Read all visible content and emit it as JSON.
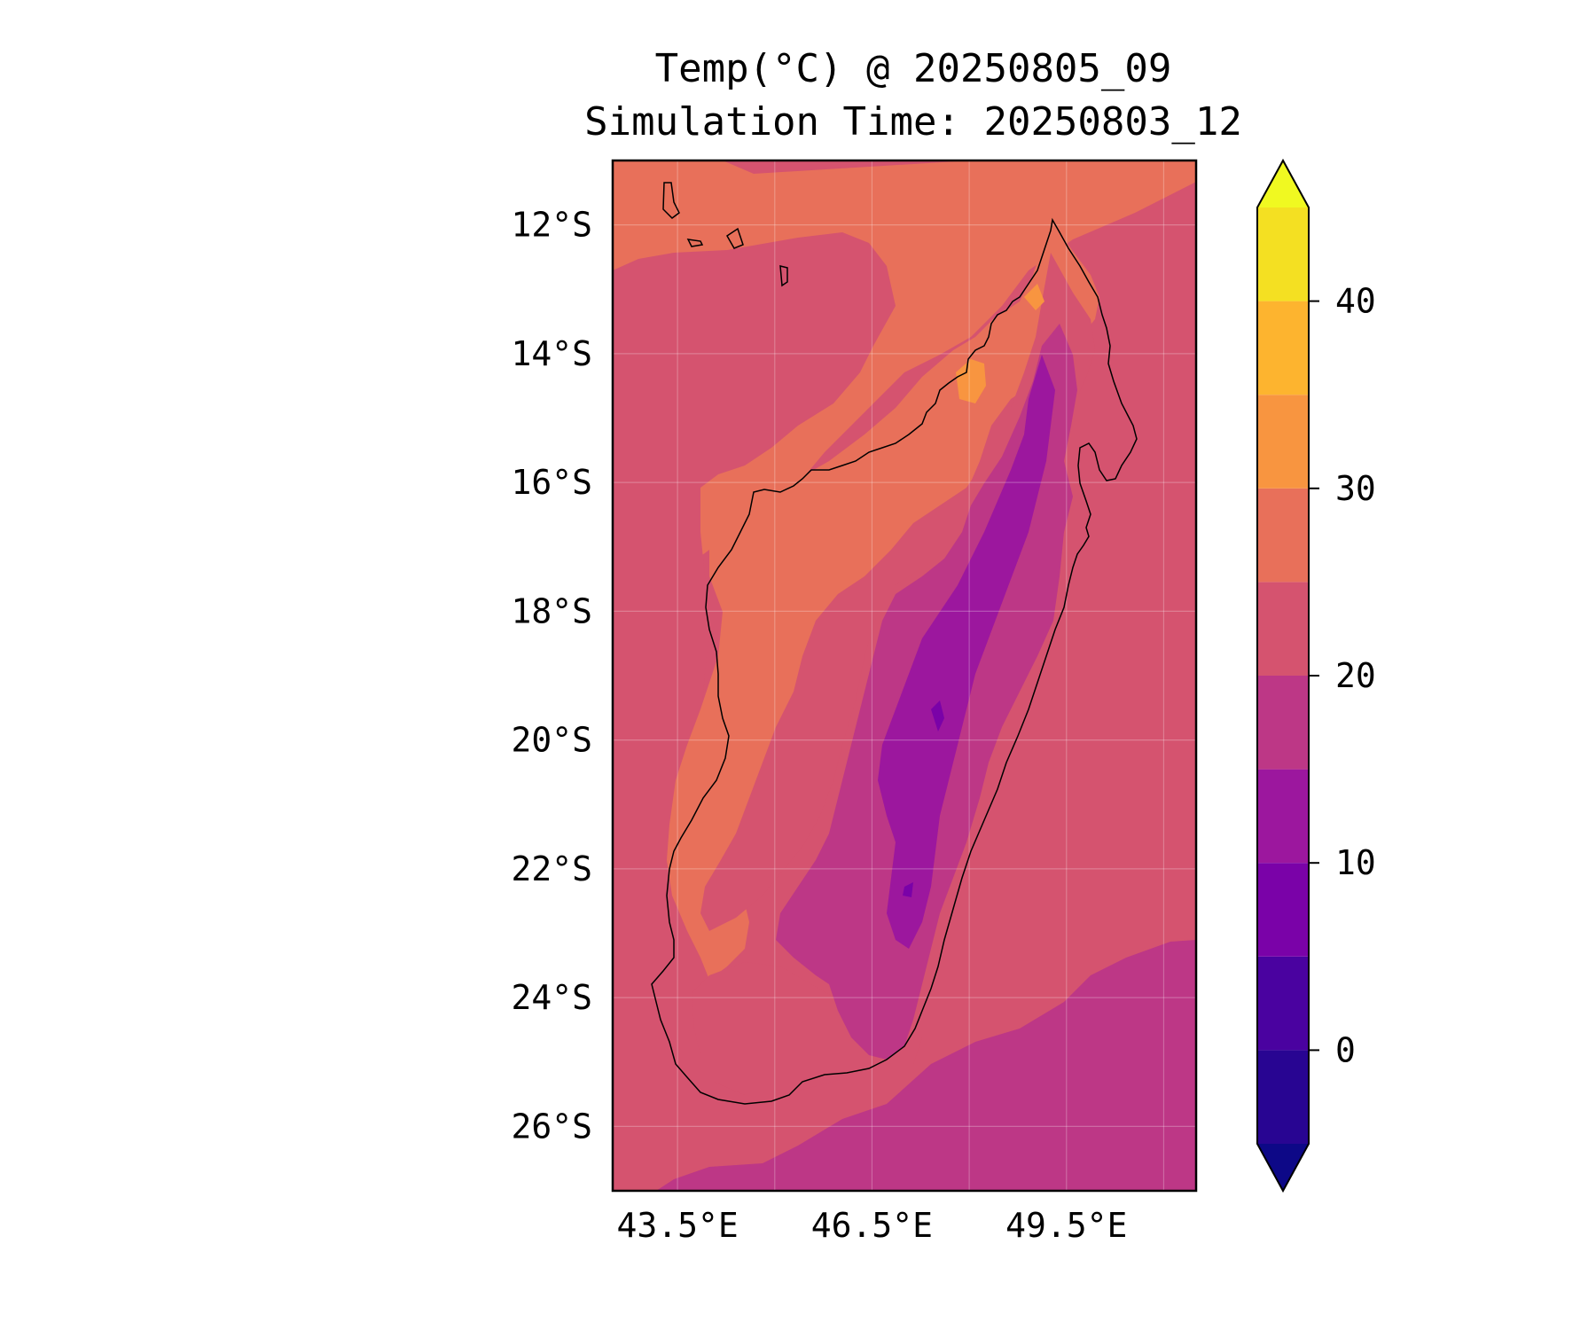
{
  "figure": {
    "title_line1": "Temp(°C) @ 20250805_09",
    "title_line2": "Simulation Time: 20250803_12"
  },
  "map": {
    "lat_range": [
      -27.0,
      -11.0
    ],
    "lon_range": [
      42.5,
      51.5
    ],
    "lat_ticks": [
      {
        "value": -12,
        "label": "12°S"
      },
      {
        "value": -14,
        "label": "14°S"
      },
      {
        "value": -16,
        "label": "16°S"
      },
      {
        "value": -18,
        "label": "18°S"
      },
      {
        "value": -20,
        "label": "20°S"
      },
      {
        "value": -22,
        "label": "22°S"
      },
      {
        "value": -24,
        "label": "24°S"
      },
      {
        "value": -26,
        "label": "26°S"
      }
    ],
    "lon_ticks": [
      {
        "value": 43.5,
        "label": "43.5°E"
      },
      {
        "value": 46.5,
        "label": "46.5°E"
      },
      {
        "value": 49.5,
        "label": "49.5°E"
      }
    ],
    "gridlines_lon": [
      43.5,
      45.0,
      46.5,
      48.0,
      49.5,
      51.0
    ],
    "gridlines_lat": [
      -12,
      -14,
      -16,
      -18,
      -20,
      -22,
      -24,
      -26
    ],
    "grid": true,
    "coastline": "Madagascar"
  },
  "colorbar": {
    "min": -5,
    "max": 45,
    "extend": "both",
    "ticks": [
      {
        "value": 0,
        "label": "0"
      },
      {
        "value": 10,
        "label": "10"
      },
      {
        "value": 20,
        "label": "20"
      },
      {
        "value": 30,
        "label": "30"
      },
      {
        "value": 40,
        "label": "40"
      }
    ],
    "bands": [
      {
        "from": -5,
        "to": 0,
        "color": "#280592"
      },
      {
        "from": 0,
        "to": 5,
        "color": "#4a02a0"
      },
      {
        "from": 5,
        "to": 10,
        "color": "#7a02a8"
      },
      {
        "from": 10,
        "to": 15,
        "color": "#9c179e"
      },
      {
        "from": 15,
        "to": 20,
        "color": "#bd3786"
      },
      {
        "from": 20,
        "to": 25,
        "color": "#d5536f"
      },
      {
        "from": 25,
        "to": 30,
        "color": "#e8705a"
      },
      {
        "from": 30,
        "to": 35,
        "color": "#f89540"
      },
      {
        "from": 35,
        "to": 40,
        "color": "#fdb42f"
      },
      {
        "from": 40,
        "to": 45,
        "color": "#f4e022"
      }
    ],
    "under_color": "#0d0887",
    "over_color": "#f0f921"
  }
}
